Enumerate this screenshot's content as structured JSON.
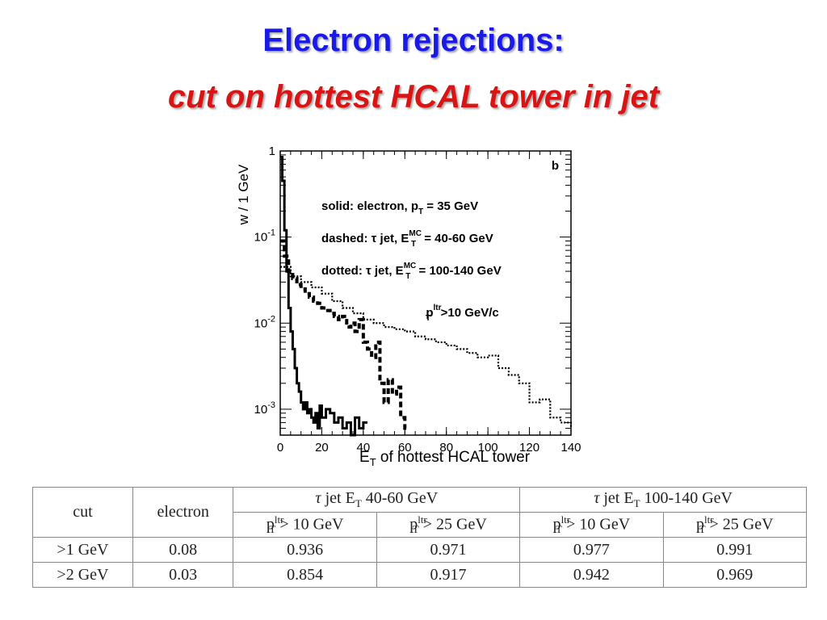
{
  "title": {
    "line1": "Electron rejections:",
    "line2": "cut on hottest HCAL tower in jet",
    "line1_color": "#1a1ae6",
    "line2_color": "#d91414"
  },
  "chart_data": {
    "type": "line",
    "panel_label": "b",
    "xlabel_main": "E",
    "xlabel_sub": "T",
    "xlabel_rest": " of hottest HCAL tower",
    "ylabel": "w / 1 GeV",
    "xlim": [
      0,
      140
    ],
    "ylim": [
      0.0005,
      1
    ],
    "yscale": "log",
    "x_ticks": [
      "0",
      "20",
      "40",
      "60",
      "80",
      "100",
      "120",
      "140"
    ],
    "y_ticks": [
      {
        "base": "1",
        "exp": ""
      },
      {
        "base": "10",
        "exp": "-1"
      },
      {
        "base": "10",
        "exp": "-2"
      },
      {
        "base": "10",
        "exp": "-3"
      }
    ],
    "annotations": [
      {
        "pre": "solid: electron, p",
        "sub": "T",
        "post": " = 35 GeV"
      },
      {
        "pre": "dashed: τ jet, E",
        "sub": "T",
        "sup": "MC",
        "post": " = 40-60 GeV"
      },
      {
        "pre": "dotted: τ jet, E",
        "sub": "T",
        "sup": "MC",
        "post": " = 100-140 GeV"
      },
      {
        "pre": "p",
        "sub": "T",
        "sup": "ltr",
        "post": ">10 GeV/c"
      }
    ],
    "series": [
      {
        "style": "solid",
        "x": [
          0,
          1,
          2,
          3,
          4,
          5,
          6,
          7,
          8,
          9,
          10,
          11,
          12,
          13,
          14,
          15,
          16,
          17,
          18,
          19,
          20,
          22,
          24,
          26,
          28,
          30,
          32,
          34,
          36,
          38,
          40
        ],
        "y": [
          0.85,
          0.45,
          0.12,
          0.04,
          0.015,
          0.008,
          0.005,
          0.003,
          0.002,
          0.0016,
          0.0012,
          0.001,
          0.0012,
          0.0009,
          0.001,
          0.0008,
          0.0007,
          0.0009,
          0.0006,
          0.0011,
          0.0008,
          0.001,
          0.0009,
          0.0007,
          0.0008,
          0.0006,
          0.0007,
          0.0005,
          0.0008,
          0.0006,
          0.0007
        ]
      },
      {
        "style": "dashed",
        "x": [
          0,
          2,
          4,
          6,
          8,
          10,
          12,
          14,
          16,
          18,
          20,
          22,
          24,
          26,
          28,
          30,
          32,
          34,
          36,
          38,
          40,
          42,
          44,
          46,
          48,
          50,
          52,
          54,
          56,
          58,
          60
        ],
        "y": [
          0.09,
          0.06,
          0.04,
          0.033,
          0.028,
          0.025,
          0.022,
          0.02,
          0.018,
          0.017,
          0.015,
          0.014,
          0.013,
          0.012,
          0.011,
          0.012,
          0.009,
          0.01,
          0.008,
          0.011,
          0.006,
          0.005,
          0.004,
          0.006,
          0.002,
          0.0012,
          0.0022,
          0.0015,
          0.0018,
          0.0008,
          0.0006
        ]
      },
      {
        "style": "dotted",
        "x": [
          0,
          5,
          10,
          15,
          20,
          25,
          30,
          35,
          40,
          45,
          50,
          55,
          60,
          65,
          70,
          75,
          80,
          85,
          90,
          95,
          100,
          105,
          110,
          115,
          120,
          125,
          130,
          135,
          140
        ],
        "y": [
          0.045,
          0.035,
          0.03,
          0.026,
          0.022,
          0.018,
          0.015,
          0.013,
          0.011,
          0.01,
          0.009,
          0.0085,
          0.008,
          0.007,
          0.0065,
          0.006,
          0.0055,
          0.005,
          0.0045,
          0.004,
          0.0042,
          0.003,
          0.0025,
          0.002,
          0.0012,
          0.0013,
          0.0008,
          0.0007,
          0.0006
        ]
      }
    ]
  },
  "table": {
    "header": {
      "cut": "cut",
      "electron": "electron",
      "group1": {
        "tau": "τ",
        "rest": " jet E",
        "sub": "T",
        "range": " 40-60 GeV"
      },
      "group2": {
        "tau": "τ",
        "rest": " jet E",
        "sub": "T",
        "range": " 100-140 GeV"
      },
      "sub_headers": [
        {
          "p": "p",
          "sup": "ltr",
          "sub": "T",
          "cond": " > 10 GeV"
        },
        {
          "p": "p",
          "sup": "ltr",
          "sub": "T",
          "cond": " > 25 GeV"
        },
        {
          "p": "p",
          "sup": "ltr",
          "sub": "T",
          "cond": " > 10 GeV"
        },
        {
          "p": "p",
          "sup": "ltr",
          "sub": "T",
          "cond": " > 25 GeV"
        }
      ]
    },
    "rows": [
      {
        "cut": ">1 GeV",
        "electron": "0.08",
        "v1": "0.936",
        "v2": "0.971",
        "v3": "0.977",
        "v4": "0.991"
      },
      {
        "cut": ">2 GeV",
        "electron": "0.03",
        "v1": "0.854",
        "v2": "0.917",
        "v3": "0.942",
        "v4": "0.969"
      }
    ]
  }
}
